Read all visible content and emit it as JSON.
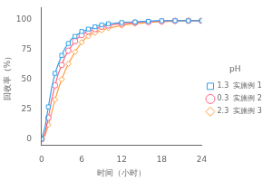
{
  "chart_data": {
    "type": "line",
    "xlabel": "时间（小时）",
    "ylabel": "回收率（%）",
    "xlim": [
      0,
      24
    ],
    "ylim": [
      -5,
      110
    ],
    "xticks": [
      0,
      6,
      12,
      18,
      24
    ],
    "yticks": [
      0,
      25,
      50,
      75,
      100
    ],
    "grid": false,
    "legend": "right",
    "legend_title": "pH",
    "x": [
      0,
      0.5,
      1,
      1.5,
      2,
      2.5,
      3,
      3.5,
      4,
      4.5,
      5,
      5.5,
      6,
      6.5,
      7,
      7.5,
      8,
      8.5,
      9,
      9.5,
      10,
      11,
      12,
      13,
      14,
      15,
      16,
      17,
      18,
      19,
      20,
      21,
      22,
      23,
      24
    ],
    "series": [
      {
        "name": "1.3  实施例 1",
        "marker": "square",
        "values": [
          0,
          10,
          27,
          43,
          55,
          63,
          70,
          76,
          80,
          84,
          86,
          88,
          90,
          91,
          92,
          93,
          94,
          95,
          95.5,
          96,
          96.5,
          97,
          97.5,
          98,
          98,
          98.5,
          98.5,
          99,
          99,
          99,
          99,
          99,
          99,
          99,
          99
        ]
      },
      {
        "name": "0.3  实施例 2",
        "marker": "circle",
        "values": [
          0,
          5,
          18,
          33,
          45,
          55,
          62,
          69,
          74,
          78,
          82,
          85,
          87,
          89,
          90,
          91,
          92,
          93,
          94,
          94.5,
          95,
          96,
          96.5,
          97,
          97.5,
          98,
          98,
          98.5,
          98.5,
          99,
          99,
          99,
          99,
          99,
          99
        ]
      },
      {
        "name": "2.3  实施例 3",
        "marker": "diamond",
        "values": [
          0,
          3,
          12,
          22,
          33,
          42,
          50,
          57,
          63,
          68,
          73,
          77,
          81,
          84,
          86,
          88,
          89,
          90,
          91,
          92,
          93,
          94,
          95,
          96,
          96.5,
          97,
          97.5,
          98,
          98,
          98.5,
          98.5,
          99,
          99,
          99,
          99
        ]
      }
    ]
  }
}
